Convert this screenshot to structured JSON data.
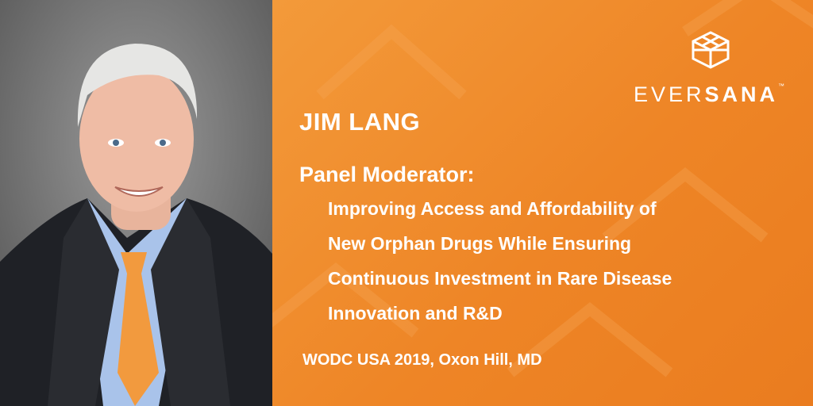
{
  "logo": {
    "parts": [
      "EVER",
      "SANA"
    ],
    "trademark": "™"
  },
  "speaker": {
    "name": "JIM LANG",
    "role": "Panel Moderator:"
  },
  "session": {
    "title_lines": [
      "Improving Access and Affordability of",
      "New Orphan Drugs While Ensuring",
      "Continuous Investment in Rare Disease",
      "Innovation and R&D"
    ]
  },
  "event": "WODC USA 2019, Oxon Hill, MD"
}
